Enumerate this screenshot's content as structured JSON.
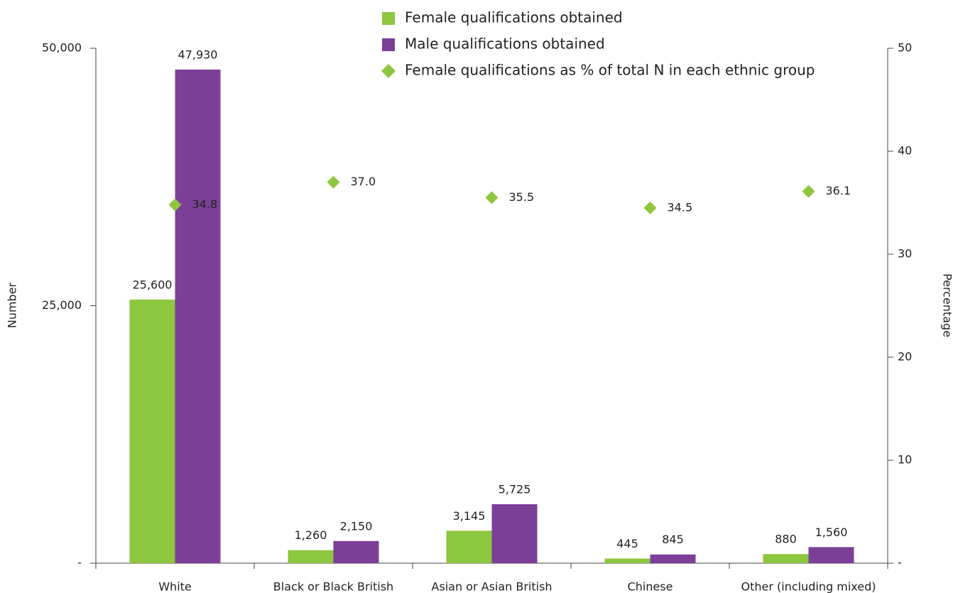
{
  "chart_data": {
    "type": "bar",
    "categories": [
      "White",
      "Black or Black British",
      "Asian or Asian British",
      "Chinese",
      "Other (including mixed)"
    ],
    "series": [
      {
        "name": "Female qualifications obtained",
        "color": "#8dc63f",
        "values": [
          25600,
          1260,
          3145,
          445,
          880
        ],
        "value_labels": [
          "25,600",
          "1,260",
          "3,145",
          "445",
          "880"
        ]
      },
      {
        "name": "Male qualifications obtained",
        "color": "#7b3f98",
        "values": [
          47930,
          2150,
          5725,
          845,
          1560
        ],
        "value_labels": [
          "47,930",
          "2,150",
          "5,725",
          "845",
          "1,560"
        ]
      },
      {
        "name": "Female qualifications as % of total N in each ethnic group",
        "color": "#8dc63f",
        "type": "scatter",
        "axis": "y2",
        "values": [
          34.8,
          37.0,
          35.5,
          34.5,
          36.1
        ],
        "value_labels": [
          "34.8",
          "37.0",
          "35.5",
          "34.5",
          "36.1"
        ]
      }
    ],
    "y_label": "Number",
    "y2_label": "Percentage",
    "ylim": [
      0,
      50000
    ],
    "yticks": [
      {
        "value": 0,
        "label": "-"
      },
      {
        "value": 25000,
        "label": "25,000"
      },
      {
        "value": 50000,
        "label": "50,000"
      }
    ],
    "y2lim": [
      0,
      50
    ],
    "y2ticks": [
      {
        "value": 0,
        "label": "-"
      },
      10,
      20,
      30,
      40,
      50
    ]
  }
}
